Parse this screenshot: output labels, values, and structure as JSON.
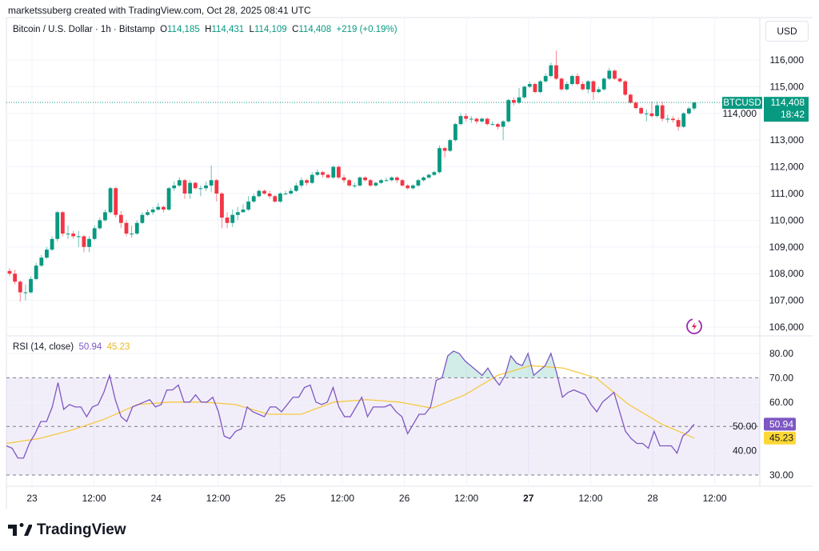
{
  "credit": "marketssuberg created with TradingView.com, Oct 28, 2025 08:41 UTC",
  "legend": {
    "symbol": "Bitcoin / U.S. Dollar · 1h · Bitstamp",
    "o_label": "O",
    "o": "114,185",
    "h_label": "H",
    "h": "114,431",
    "l_label": "L",
    "l": "114,109",
    "c_label": "C",
    "c": "114,408",
    "change": "+219 (+0.19%)"
  },
  "currency_button": "USD",
  "price_tag": {
    "symbol": "BTCUSD",
    "price": "114,408",
    "countdown": "18:42"
  },
  "rsi_legend": {
    "name": "RSI (14, close)",
    "rsi": "50.94",
    "ma": "45.23"
  },
  "logo_text": "TradingView",
  "colors": {
    "up": "#089981",
    "down": "#f23645",
    "rsi": "#7e57c2",
    "rsi_ma": "#f5c842",
    "band": "#7e57c2"
  },
  "icons": [
    "tradingview-logo-icon",
    "lightning-badge-icon"
  ],
  "chart_data": [
    {
      "type": "candlestick",
      "title": "Bitcoin / U.S. Dollar · 1h · Bitstamp",
      "ylim": [
        106000,
        116400
      ],
      "y_ticks": [
        "116,000",
        "115,000",
        "114,000",
        "113,000",
        "112,000",
        "111,000",
        "110,000",
        "109,000",
        "108,000",
        "107,000",
        "106,000"
      ],
      "y_tick_values": [
        116000,
        115000,
        114000,
        113000,
        112000,
        111000,
        110000,
        109000,
        108000,
        107000,
        106000
      ],
      "x_ticks": [
        "23",
        "12:00",
        "24",
        "12:00",
        "25",
        "12:00",
        "26",
        "12:00",
        "27",
        "12:00",
        "28",
        "12:00"
      ],
      "current_price": 114408,
      "grid": true,
      "candles": [
        [
          108100,
          108200,
          107900,
          108000
        ],
        [
          108000,
          108150,
          107600,
          107700
        ],
        [
          107700,
          107750,
          106950,
          107300
        ],
        [
          107300,
          107600,
          107000,
          107300
        ],
        [
          107300,
          107900,
          107250,
          107800
        ],
        [
          107800,
          108400,
          107750,
          108300
        ],
        [
          108300,
          108700,
          108250,
          108600
        ],
        [
          108600,
          109000,
          108550,
          108900
        ],
        [
          108900,
          109400,
          108850,
          109300
        ],
        [
          109300,
          110350,
          109200,
          110300
        ],
        [
          110300,
          110350,
          109400,
          109500
        ],
        [
          109500,
          109800,
          109300,
          109500
        ],
        [
          109500,
          109600,
          109300,
          109400
        ],
        [
          109400,
          109600,
          109000,
          109400
        ],
        [
          109400,
          109450,
          108800,
          109000
        ],
        [
          109000,
          109400,
          108800,
          109300
        ],
        [
          109300,
          109800,
          109250,
          109700
        ],
        [
          109700,
          110100,
          109650,
          110000
        ],
        [
          110000,
          110400,
          109950,
          110300
        ],
        [
          110300,
          111250,
          110250,
          111200
        ],
        [
          111200,
          111250,
          110100,
          110200
        ],
        [
          110200,
          110350,
          109700,
          109900
        ],
        [
          109900,
          110000,
          109400,
          109500
        ],
        [
          109500,
          109800,
          109350,
          109500
        ],
        [
          109500,
          110000,
          109450,
          109900
        ],
        [
          109900,
          110300,
          109850,
          110200
        ],
        [
          110200,
          110400,
          110150,
          110300
        ],
        [
          110300,
          110500,
          110200,
          110400
        ],
        [
          110400,
          110650,
          110350,
          110500
        ],
        [
          110500,
          110550,
          110300,
          110400
        ],
        [
          110400,
          111250,
          110350,
          111200
        ],
        [
          111200,
          111450,
          111100,
          111300
        ],
        [
          111300,
          111600,
          111250,
          111500
        ],
        [
          111500,
          111550,
          110800,
          111000
        ],
        [
          111000,
          111500,
          110800,
          111400
        ],
        [
          111400,
          111450,
          111150,
          111200
        ],
        [
          111200,
          111300,
          110900,
          111200
        ],
        [
          111200,
          111450,
          111100,
          111300
        ],
        [
          111300,
          112050,
          111050,
          111500
        ],
        [
          111500,
          111550,
          110700,
          111000
        ],
        [
          111000,
          111050,
          109700,
          110100
        ],
        [
          110100,
          110300,
          109700,
          109900
        ],
        [
          109900,
          110400,
          109750,
          110200
        ],
        [
          110200,
          110500,
          110000,
          110300
        ],
        [
          110300,
          110600,
          110300,
          110400
        ],
        [
          110400,
          110900,
          110350,
          110700
        ],
        [
          110700,
          111000,
          110650,
          110900
        ],
        [
          110900,
          111150,
          110850,
          111100
        ],
        [
          111100,
          111150,
          110950,
          111000
        ],
        [
          111000,
          111100,
          110800,
          110900
        ],
        [
          110900,
          110950,
          110650,
          110700
        ],
        [
          110700,
          111050,
          110650,
          111000
        ],
        [
          111000,
          111100,
          110950,
          111000
        ],
        [
          111000,
          111200,
          110950,
          111100
        ],
        [
          111100,
          111400,
          111050,
          111300
        ],
        [
          111300,
          111600,
          111200,
          111500
        ],
        [
          111500,
          111550,
          111300,
          111400
        ],
        [
          111400,
          111800,
          111350,
          111700
        ],
        [
          111700,
          111900,
          111650,
          111800
        ],
        [
          111800,
          111850,
          111600,
          111700
        ],
        [
          111700,
          111750,
          111550,
          111600
        ],
        [
          111600,
          112050,
          111550,
          112000
        ],
        [
          112000,
          112050,
          111550,
          111600
        ],
        [
          111600,
          111700,
          111400,
          111500
        ],
        [
          111500,
          111550,
          111250,
          111300
        ],
        [
          111300,
          111400,
          111200,
          111300
        ],
        [
          111300,
          111650,
          111250,
          111600
        ],
        [
          111600,
          111650,
          111450,
          111500
        ],
        [
          111500,
          111550,
          111250,
          111300
        ],
        [
          111300,
          111450,
          111250,
          111400
        ],
        [
          111400,
          111550,
          111350,
          111500
        ],
        [
          111500,
          111600,
          111450,
          111500
        ],
        [
          111500,
          111650,
          111450,
          111600
        ],
        [
          111600,
          111650,
          111400,
          111500
        ],
        [
          111500,
          111550,
          111250,
          111300
        ],
        [
          111300,
          111350,
          111150,
          111200
        ],
        [
          111200,
          111350,
          111150,
          111300
        ],
        [
          111300,
          111550,
          111250,
          111500
        ],
        [
          111500,
          111650,
          111450,
          111600
        ],
        [
          111600,
          111750,
          111550,
          111700
        ],
        [
          111700,
          111850,
          111650,
          111800
        ],
        [
          111800,
          112800,
          111750,
          112700
        ],
        [
          112700,
          112750,
          112350,
          112600
        ],
        [
          112600,
          113050,
          112550,
          113000
        ],
        [
          113000,
          113650,
          112950,
          113600
        ],
        [
          113600,
          114000,
          113550,
          113900
        ],
        [
          113900,
          114000,
          113700,
          113800
        ],
        [
          113800,
          113900,
          113650,
          113800
        ],
        [
          113800,
          113850,
          113600,
          113700
        ],
        [
          113700,
          113850,
          113650,
          113800
        ],
        [
          113800,
          113850,
          113550,
          113600
        ],
        [
          113600,
          113700,
          113550,
          113600
        ],
        [
          113600,
          113650,
          113400,
          113500
        ],
        [
          113500,
          113750,
          113000,
          113700
        ],
        [
          113700,
          114550,
          113650,
          114500
        ],
        [
          114500,
          114600,
          114300,
          114400
        ],
        [
          114400,
          114950,
          114350,
          114600
        ],
        [
          114600,
          115050,
          114550,
          115000
        ],
        [
          115000,
          115200,
          114950,
          115100
        ],
        [
          115100,
          115150,
          114750,
          114800
        ],
        [
          114800,
          115250,
          114750,
          115200
        ],
        [
          115200,
          115500,
          115150,
          115400
        ],
        [
          115400,
          115900,
          115350,
          115800
        ],
        [
          115800,
          116350,
          115250,
          115300
        ],
        [
          115300,
          115350,
          114850,
          114900
        ],
        [
          114900,
          115200,
          114850,
          115100
        ],
        [
          115100,
          115450,
          115050,
          115400
        ],
        [
          115400,
          115500,
          115050,
          115100
        ],
        [
          115100,
          115200,
          114850,
          114900
        ],
        [
          114900,
          115250,
          114750,
          115200
        ],
        [
          115200,
          115250,
          114500,
          114800
        ],
        [
          114800,
          115000,
          114750,
          114900
        ],
        [
          114900,
          115350,
          114850,
          115300
        ],
        [
          115300,
          115700,
          115250,
          115600
        ],
        [
          115600,
          115650,
          115250,
          115300
        ],
        [
          115300,
          115350,
          115150,
          115200
        ],
        [
          115200,
          115250,
          114650,
          114700
        ],
        [
          114700,
          114750,
          114350,
          114400
        ],
        [
          114400,
          114450,
          114150,
          114200
        ],
        [
          114200,
          114250,
          113950,
          114000
        ],
        [
          114000,
          114150,
          113700,
          114000
        ],
        [
          114000,
          114450,
          113850,
          113900
        ],
        [
          113900,
          114450,
          113850,
          114300
        ],
        [
          114300,
          114450,
          113700,
          113800
        ],
        [
          113800,
          113950,
          113650,
          113800
        ],
        [
          113800,
          113900,
          113650,
          113750
        ],
        [
          113750,
          113850,
          113350,
          113500
        ],
        [
          113500,
          114050,
          113450,
          114000
        ],
        [
          114000,
          114250,
          113950,
          114185
        ],
        [
          114185,
          114431,
          114109,
          114408
        ]
      ]
    },
    {
      "type": "line",
      "title": "RSI (14, close)",
      "ylim": [
        27,
        84
      ],
      "y_ticks": [
        "80.00",
        "70.00",
        "60.00",
        "50.00",
        "40.00",
        "30.00"
      ],
      "y_tick_values": [
        80,
        70,
        60,
        50,
        40,
        30
      ],
      "bands": {
        "upper": 70,
        "middle": 50,
        "lower": 30
      },
      "series": [
        {
          "name": "RSI",
          "last": 50.94,
          "values": [
            42,
            41,
            37,
            37,
            43,
            47,
            52,
            52,
            58,
            68,
            57,
            59,
            58,
            58,
            54,
            58,
            59,
            64,
            71,
            61,
            54,
            52,
            58,
            59,
            60,
            61,
            58,
            59,
            65,
            65,
            67,
            60,
            60,
            63,
            60,
            60,
            62,
            56,
            46,
            45,
            48,
            49,
            58,
            56,
            55,
            54,
            58,
            58,
            56,
            59,
            62,
            62,
            66,
            67,
            60,
            59,
            60,
            66,
            58,
            54,
            54,
            58,
            62,
            54,
            58,
            58,
            58,
            59,
            56,
            54,
            47,
            51,
            55,
            55,
            58,
            69,
            70,
            79,
            81,
            80,
            77,
            75,
            73,
            71,
            74,
            70,
            67,
            71,
            79,
            76,
            75,
            80,
            71,
            73,
            75,
            80,
            72,
            62,
            64,
            65,
            64,
            63,
            59,
            56,
            60,
            62,
            64,
            56,
            48,
            45,
            43,
            43,
            41,
            48,
            42,
            42,
            42,
            39,
            46,
            48,
            50.94
          ]
        },
        {
          "name": "RSI-based MA",
          "last": 45.23,
          "values": [
            43,
            45,
            48.5,
            53,
            59,
            60,
            60,
            59,
            55,
            55,
            60,
            61,
            60,
            57.5,
            63,
            71,
            75,
            74,
            70,
            59,
            51,
            45.23
          ]
        }
      ]
    }
  ]
}
